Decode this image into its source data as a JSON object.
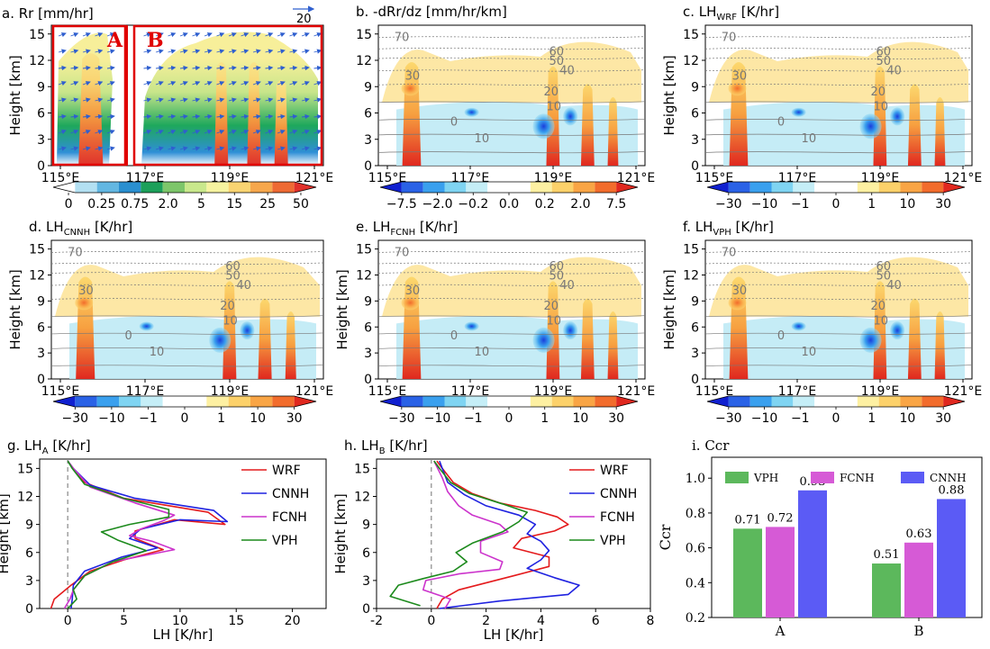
{
  "chart_data": [
    {
      "id": "a",
      "type": "heatmap",
      "title_prefix": "a. Rr [mm/hr]",
      "ylabel": "Height [km]",
      "xticks": [
        "115°E",
        "117°E",
        "119°E",
        "121°E"
      ],
      "yticks": [
        "0",
        "3",
        "6",
        "9",
        "12",
        "15"
      ],
      "colorbar_ticks": [
        "0",
        "0.25",
        "0.75",
        "2.0",
        "5",
        "15",
        "25",
        "50"
      ],
      "colorbar_colors": [
        "#ffffff",
        "#b3e0f2",
        "#63b7e2",
        "#2a8fd0",
        "#1ca05a",
        "#7dc66a",
        "#c9e88c",
        "#f6f3a0",
        "#f9d472",
        "#f6a74c",
        "#ee6a34",
        "#e0312b"
      ],
      "box_labels": [
        "A",
        "B"
      ],
      "reference_vector": "20"
    },
    {
      "id": "b",
      "type": "heatmap",
      "title_prefix": "b. -dRr/dz [mm/hr/km]",
      "ylabel": "",
      "xticks": [
        "115°E",
        "117°E",
        "119°E",
        "121°E"
      ],
      "yticks": [
        "0",
        "3",
        "6",
        "9",
        "12",
        "15"
      ],
      "contour_labels": [
        "70",
        "60",
        "50",
        "40",
        "30",
        "20",
        "10",
        "0",
        "10"
      ],
      "colorbar_ticks": [
        "−7.5",
        "−2.0",
        "−0.2",
        "0.0",
        "0.2",
        "2.0",
        "7.5"
      ],
      "colorbar_colors": [
        "#1020d0",
        "#2a62e6",
        "#3aa0ee",
        "#7fd4f2",
        "#c5eef7",
        "#ffffff",
        "#ffffff",
        "#fdf0a2",
        "#fcd16a",
        "#f9a545",
        "#f26c2c",
        "#e0281f"
      ]
    },
    {
      "id": "c",
      "type": "heatmap",
      "title_prefix": "c. LH",
      "title_sub": "WRF",
      "title_suffix": " [K/hr]",
      "ylabel": "Height [km]",
      "xticks": [
        "115°E",
        "117°E",
        "119°E",
        "121°E"
      ],
      "yticks": [
        "0",
        "3",
        "6",
        "9",
        "12",
        "15"
      ],
      "contour_labels": [
        "70",
        "60",
        "50",
        "40",
        "30",
        "20",
        "10",
        "0",
        "10"
      ],
      "colorbar_ticks": [
        "−30",
        "−10",
        "−1",
        "0",
        "1",
        "10",
        "30"
      ],
      "colorbar_colors": [
        "#1020d0",
        "#2a62e6",
        "#3aa0ee",
        "#7fd4f2",
        "#c5eef7",
        "#ffffff",
        "#ffffff",
        "#fdf0a2",
        "#fcd16a",
        "#f9a545",
        "#f26c2c",
        "#e0281f"
      ]
    },
    {
      "id": "d",
      "type": "heatmap",
      "title_prefix": "d. LH",
      "title_sub": "CNNH",
      "title_suffix": " [K/hr]",
      "ylabel": "Height [km]",
      "xticks": [
        "115°E",
        "117°E",
        "119°E",
        "121°E"
      ],
      "yticks": [
        "0",
        "3",
        "6",
        "9",
        "12",
        "15"
      ],
      "contour_labels": [
        "70",
        "60",
        "50",
        "40",
        "30",
        "20",
        "10",
        "0",
        "10"
      ],
      "colorbar_ticks": [
        "−30",
        "−10",
        "−1",
        "0",
        "1",
        "10",
        "30"
      ],
      "colorbar_colors": [
        "#1020d0",
        "#2a62e6",
        "#3aa0ee",
        "#7fd4f2",
        "#c5eef7",
        "#ffffff",
        "#ffffff",
        "#fdf0a2",
        "#fcd16a",
        "#f9a545",
        "#f26c2c",
        "#e0281f"
      ]
    },
    {
      "id": "e",
      "type": "heatmap",
      "title_prefix": "e. LH",
      "title_sub": "FCNH",
      "title_suffix": " [K/hr]",
      "ylabel": "Height [km]",
      "xticks": [
        "115°E",
        "117°E",
        "119°E",
        "121°E"
      ],
      "yticks": [
        "0",
        "3",
        "6",
        "9",
        "12",
        "15"
      ],
      "contour_labels": [
        "70",
        "60",
        "50",
        "40",
        "30",
        "20",
        "10",
        "0",
        "10"
      ],
      "colorbar_ticks": [
        "−30",
        "−10",
        "−1",
        "0",
        "1",
        "10",
        "30"
      ],
      "colorbar_colors": [
        "#1020d0",
        "#2a62e6",
        "#3aa0ee",
        "#7fd4f2",
        "#c5eef7",
        "#ffffff",
        "#ffffff",
        "#fdf0a2",
        "#fcd16a",
        "#f9a545",
        "#f26c2c",
        "#e0281f"
      ]
    },
    {
      "id": "f",
      "type": "heatmap",
      "title_prefix": "f. LH",
      "title_sub": "VPH",
      "title_suffix": " [K/hr]",
      "ylabel": "Height [km]",
      "xticks": [
        "115°E",
        "117°E",
        "119°E",
        "121°E"
      ],
      "yticks": [
        "0",
        "3",
        "6",
        "9",
        "12",
        "15"
      ],
      "contour_labels": [
        "70",
        "60",
        "50",
        "40",
        "30",
        "20",
        "10",
        "0",
        "10"
      ],
      "colorbar_ticks": [
        "−30",
        "−10",
        "−1",
        "0",
        "1",
        "10",
        "30"
      ],
      "colorbar_colors": [
        "#1020d0",
        "#2a62e6",
        "#3aa0ee",
        "#7fd4f2",
        "#c5eef7",
        "#ffffff",
        "#ffffff",
        "#fdf0a2",
        "#fcd16a",
        "#f9a545",
        "#f26c2c",
        "#e0281f"
      ]
    },
    {
      "id": "g",
      "type": "line",
      "title_prefix": "g. LH",
      "title_sub": "A",
      "title_suffix": " [K/hr]",
      "xlabel": "LH [K/hr]",
      "ylabel": "Height [km]",
      "xlim": [
        -2.5,
        23
      ],
      "ylim": [
        0,
        16
      ],
      "xticks": [
        0,
        5,
        10,
        15,
        20
      ],
      "yticks": [
        0,
        3,
        6,
        9,
        12,
        15
      ],
      "series": [
        {
          "name": "WRF",
          "color": "#e41a1c",
          "points": [
            [
              -1.5,
              0
            ],
            [
              -1.2,
              1
            ],
            [
              0.3,
              2.5
            ],
            [
              2,
              4
            ],
            [
              5,
              5.2
            ],
            [
              8.5,
              6.3
            ],
            [
              6,
              7.5
            ],
            [
              6,
              8.3
            ],
            [
              9.5,
              9.5
            ],
            [
              14,
              9
            ],
            [
              12.5,
              10.3
            ],
            [
              5,
              11.8
            ],
            [
              1.5,
              13.5
            ],
            [
              0.5,
              15
            ],
            [
              0,
              15.8
            ]
          ]
        },
        {
          "name": "CNNH",
          "color": "#1f22e0",
          "points": [
            [
              0.3,
              0
            ],
            [
              0.4,
              1
            ],
            [
              0.5,
              2.5
            ],
            [
              1.5,
              4
            ],
            [
              4.8,
              5.5
            ],
            [
              8,
              6.5
            ],
            [
              5.5,
              7.5
            ],
            [
              6.5,
              8.5
            ],
            [
              10,
              9.5
            ],
            [
              14.2,
              9.3
            ],
            [
              13,
              10.5
            ],
            [
              6,
              11.8
            ],
            [
              2,
              13.2
            ],
            [
              0.5,
              15
            ],
            [
              0,
              15.8
            ]
          ]
        },
        {
          "name": "FCNH",
          "color": "#cc33cc",
          "points": [
            [
              -0.3,
              0
            ],
            [
              0.2,
              1
            ],
            [
              0.5,
              2
            ],
            [
              1.5,
              3.5
            ],
            [
              4,
              5
            ],
            [
              9.5,
              6.3
            ],
            [
              7.5,
              7.2
            ],
            [
              5.5,
              7.8
            ],
            [
              6.5,
              8.5
            ],
            [
              8.5,
              9.4
            ],
            [
              9.5,
              10
            ],
            [
              6,
              11.3
            ],
            [
              2,
              13
            ],
            [
              0.5,
              15
            ],
            [
              0,
              15.8
            ]
          ]
        },
        {
          "name": "VPH",
          "color": "#1c8a1c",
          "points": [
            [
              0,
              0
            ],
            [
              0.8,
              1
            ],
            [
              0.5,
              2
            ],
            [
              1.5,
              3.5
            ],
            [
              4,
              5
            ],
            [
              7,
              6.2
            ],
            [
              4.5,
              7.3
            ],
            [
              3,
              8.2
            ],
            [
              5.5,
              9
            ],
            [
              9,
              9.8
            ],
            [
              9,
              10.6
            ],
            [
              5,
              11.8
            ],
            [
              1.5,
              13.3
            ],
            [
              0.4,
              15
            ],
            [
              0,
              15.8
            ]
          ]
        }
      ]
    },
    {
      "id": "h",
      "type": "line",
      "title_prefix": "h. LH",
      "title_sub": "B",
      "title_suffix": " [K/hr]",
      "xlabel": "LH [K/hr]",
      "ylabel": "Height [km]",
      "xlim": [
        -2,
        8
      ],
      "ylim": [
        0,
        16
      ],
      "xticks": [
        -2,
        0,
        2,
        4,
        6,
        8
      ],
      "yticks": [
        0,
        3,
        6,
        9,
        12,
        15
      ],
      "series": [
        {
          "name": "WRF",
          "color": "#e41a1c",
          "points": [
            [
              0.2,
              0
            ],
            [
              0.4,
              1
            ],
            [
              1,
              2
            ],
            [
              3,
              3.5
            ],
            [
              4.3,
              4.5
            ],
            [
              4.3,
              5.5
            ],
            [
              3,
              6.5
            ],
            [
              3.3,
              7.5
            ],
            [
              4.5,
              8.3
            ],
            [
              5,
              9
            ],
            [
              4.6,
              9.8
            ],
            [
              3.8,
              10.5
            ],
            [
              2.5,
              11.3
            ],
            [
              1.5,
              12.3
            ],
            [
              0.8,
              13.5
            ],
            [
              0.4,
              15
            ],
            [
              0.2,
              15.8
            ]
          ]
        },
        {
          "name": "CNNH",
          "color": "#1f22e0",
          "points": [
            [
              0.3,
              0
            ],
            [
              2.5,
              0.8
            ],
            [
              5,
              1.5
            ],
            [
              5.4,
              2.5
            ],
            [
              4.5,
              3.3
            ],
            [
              3.5,
              4.3
            ],
            [
              4,
              5.2
            ],
            [
              4.3,
              6.2
            ],
            [
              4,
              7.2
            ],
            [
              3.5,
              8
            ],
            [
              3.8,
              9
            ],
            [
              3.2,
              10
            ],
            [
              2,
              11
            ],
            [
              1.2,
              12.2
            ],
            [
              0.6,
              13.5
            ],
            [
              0.4,
              15
            ],
            [
              0.3,
              15.8
            ]
          ]
        },
        {
          "name": "FCNH",
          "color": "#cc33cc",
          "points": [
            [
              0.5,
              0
            ],
            [
              0.7,
              1
            ],
            [
              -0.3,
              2
            ],
            [
              -0.2,
              3
            ],
            [
              1,
              3.7
            ],
            [
              2.5,
              4.2
            ],
            [
              2.6,
              5
            ],
            [
              1.8,
              6
            ],
            [
              1.8,
              7.2
            ],
            [
              2.8,
              8.2
            ],
            [
              2.5,
              9
            ],
            [
              1.5,
              10
            ],
            [
              1,
              11
            ],
            [
              0.6,
              12.5
            ],
            [
              0.4,
              14
            ],
            [
              0.1,
              15.8
            ]
          ]
        },
        {
          "name": "VPH",
          "color": "#1c8a1c",
          "points": [
            [
              -0.4,
              0.3
            ],
            [
              -1.5,
              1.3
            ],
            [
              -1.2,
              2.5
            ],
            [
              -0.3,
              3.2
            ],
            [
              0.8,
              4
            ],
            [
              1.3,
              5
            ],
            [
              0.9,
              6
            ],
            [
              1.5,
              7
            ],
            [
              2.6,
              8.2
            ],
            [
              3.2,
              9.3
            ],
            [
              3.5,
              10.3
            ],
            [
              2.6,
              11.2
            ],
            [
              1.4,
              12.3
            ],
            [
              0.7,
              13.5
            ],
            [
              0.3,
              15
            ],
            [
              0.1,
              15.8
            ]
          ]
        }
      ]
    },
    {
      "id": "i",
      "type": "bar",
      "title": "i. Ccr",
      "ylabel": "Ccr",
      "categories": [
        "A",
        "B"
      ],
      "ylim": [
        0.2,
        1.12
      ],
      "yticks": [
        "0.2",
        "0.4",
        "0.6",
        "0.8",
        "1.0"
      ],
      "ytick_values": [
        0.2,
        0.4,
        0.6,
        0.8,
        1.0
      ],
      "series": [
        {
          "name": "VPH",
          "color": "#5cb85c",
          "values": [
            0.71,
            0.51
          ],
          "labels": [
            "0.71",
            "0.51"
          ]
        },
        {
          "name": "FCNH",
          "color": "#d65ad6",
          "values": [
            0.72,
            0.63
          ],
          "labels": [
            "0.72",
            "0.63"
          ]
        },
        {
          "name": "CNNH",
          "color": "#5b5bf5",
          "values": [
            0.93,
            0.88
          ],
          "labels": [
            "0.93",
            "0.88"
          ]
        }
      ]
    }
  ]
}
